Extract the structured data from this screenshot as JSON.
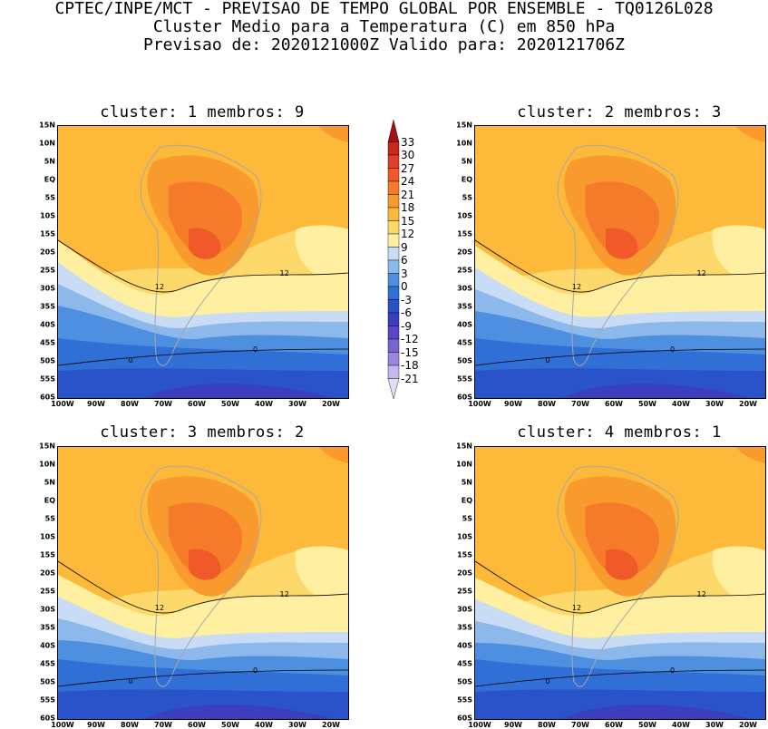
{
  "header": {
    "line1": "CPTEC/INPE/MCT - PREVISAO DE TEMPO GLOBAL POR ENSEMBLE - TQ0126L028",
    "line2": "Cluster Medio para a Temperatura (C) em 850 hPa",
    "line3": "Previsao de: 2020121000Z   Valido para: 2020121706Z"
  },
  "panels": [
    {
      "title": "cluster: 1   membros: 9"
    },
    {
      "title": "cluster: 2   membros: 3"
    },
    {
      "title": "cluster: 3   membros: 2"
    },
    {
      "title": "cluster: 4   membros: 1"
    }
  ],
  "lat_ticks": [
    "15N",
    "10N",
    "5N",
    "EQ",
    "5S",
    "10S",
    "15S",
    "20S",
    "25S",
    "30S",
    "35S",
    "40S",
    "45S",
    "50S",
    "55S",
    "60S"
  ],
  "lon_ticks": [
    "100W",
    "90W",
    "80W",
    "70W",
    "60W",
    "50W",
    "40W",
    "30W",
    "20W"
  ],
  "contour_labels": {
    "c12": "12",
    "c0": "0"
  },
  "colorbar": {
    "labels": [
      "33",
      "30",
      "27",
      "24",
      "21",
      "18",
      "15",
      "12",
      "9",
      "6",
      "3",
      "0",
      "-3",
      "-6",
      "-9",
      "-12",
      "-15",
      "-18",
      "-21"
    ],
    "colors": [
      "#a50f15",
      "#c8281e",
      "#e0402a",
      "#f05a28",
      "#f57a2a",
      "#f99a2e",
      "#fdb93a",
      "#fdd86a",
      "#fef0a0",
      "#c9dcf5",
      "#8cb8ec",
      "#4f8fe0",
      "#2f6fd6",
      "#2a52c9",
      "#3b3fbf",
      "#5a45c6",
      "#7b63d2",
      "#9a86de",
      "#c4b8ec",
      "#e4dcf5"
    ]
  }
}
